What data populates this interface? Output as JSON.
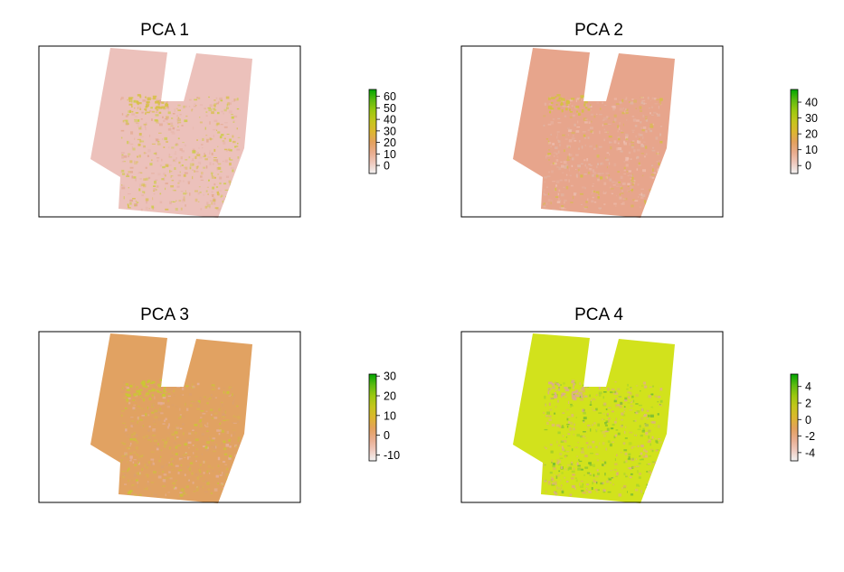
{
  "chart_data": [
    {
      "type": "heatmap",
      "title": "PCA 1",
      "legend_ticks": [
        0,
        10,
        20,
        30,
        40,
        50,
        60
      ],
      "legend_range": [
        -7,
        66
      ],
      "fill_color": "#ecc1bb",
      "patch_colors": [
        "#e2a78c",
        "#d7bf44",
        "#c9cd38",
        "#e6b3a6"
      ]
    },
    {
      "type": "heatmap",
      "title": "PCA 2",
      "legend_ticks": [
        0,
        10,
        20,
        30,
        40
      ],
      "legend_range": [
        -5,
        48
      ],
      "fill_color": "#e7a58c",
      "patch_colors": [
        "#edbfb1",
        "#d4c23e",
        "#e6b3a2",
        "#dfb8a8"
      ]
    },
    {
      "type": "heatmap",
      "title": "PCA 3",
      "legend_ticks": [
        -10,
        0,
        10,
        20,
        30
      ],
      "legend_range": [
        -13,
        31
      ],
      "fill_color": "#e1a262",
      "patch_colors": [
        "#d8b64a",
        "#c9c832",
        "#e5b0a0",
        "#dba070"
      ]
    },
    {
      "type": "heatmap",
      "title": "PCA 4",
      "legend_ticks": [
        -4,
        -2,
        0,
        2,
        4
      ],
      "legend_range": [
        -5,
        5.5
      ],
      "fill_color": "#d2e21c",
      "patch_colors": [
        "#e3a87a",
        "#dcab90",
        "#9ed030",
        "#69b638",
        "#e3b08c"
      ]
    }
  ],
  "colors": {
    "ramp": [
      "#f2f2f2",
      "#efc9bd",
      "#e9ac8d",
      "#e3a15c",
      "#dcb72e",
      "#c4c61b",
      "#9bc80f",
      "#5cba10",
      "#00a600"
    ],
    "frame": "#000000"
  }
}
